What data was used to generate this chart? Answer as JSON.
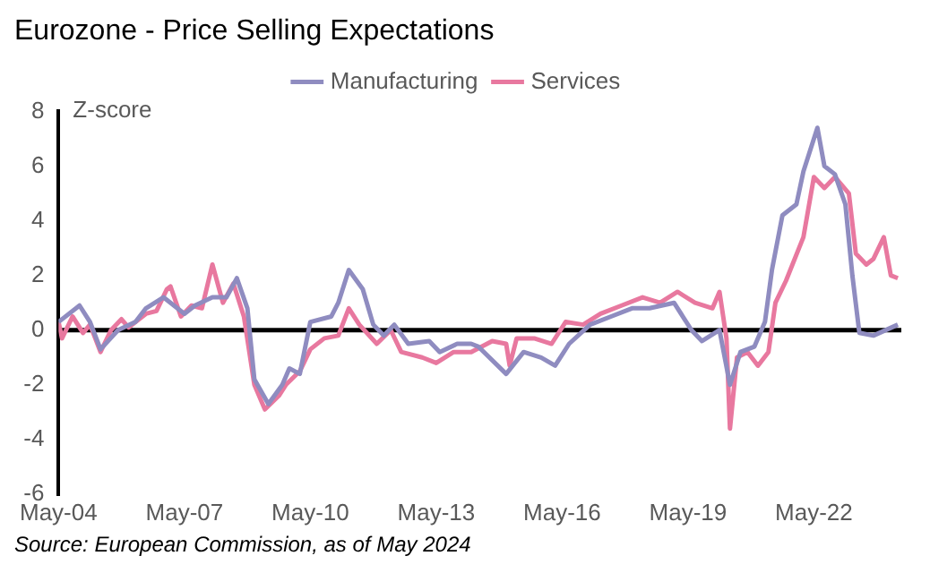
{
  "chart_data": {
    "type": "line",
    "title": "Eurozone - Price Selling Expectations",
    "ylabel": "Z-score",
    "annotations": [
      "Source: European Commission, as of May 2024"
    ],
    "xlim": [
      "2004-05",
      "2024-06"
    ],
    "xticks": [
      {
        "value": "2004-05",
        "label": "May-04"
      },
      {
        "value": "2007-05",
        "label": "May-07"
      },
      {
        "value": "2010-05",
        "label": "May-10"
      },
      {
        "value": "2013-05",
        "label": "May-13"
      },
      {
        "value": "2016-05",
        "label": "May-16"
      },
      {
        "value": "2019-05",
        "label": "May-19"
      },
      {
        "value": "2022-05",
        "label": "May-22"
      }
    ],
    "ref_lines": [
      {
        "axis": "y",
        "value": 0,
        "color": "#000000"
      }
    ],
    "ylim": [
      -6,
      8
    ],
    "yticks": [
      -6,
      -4,
      -2,
      0,
      2,
      4,
      6,
      8
    ],
    "grid": false,
    "legend": "top",
    "line_style": "solid",
    "marker": "none",
    "series": [
      {
        "name": "Manufacturing",
        "color": "#8f8cc0",
        "x": [
          "2004-05",
          "2004-11",
          "2005-02",
          "2005-05",
          "2005-10",
          "2006-03",
          "2006-06",
          "2006-11",
          "2007-05",
          "2007-08",
          "2008-01",
          "2008-05",
          "2008-08",
          "2008-11",
          "2009-01",
          "2009-05",
          "2009-09",
          "2009-11",
          "2010-02",
          "2010-05",
          "2010-11",
          "2011-01",
          "2011-04",
          "2011-08",
          "2011-11",
          "2012-02",
          "2012-05",
          "2012-09",
          "2013-03",
          "2013-06",
          "2013-11",
          "2014-03",
          "2014-05",
          "2015-01",
          "2015-06",
          "2015-11",
          "2016-03",
          "2016-07",
          "2017-01",
          "2017-07",
          "2018-01",
          "2018-06",
          "2019-01",
          "2019-06",
          "2019-09",
          "2020-02",
          "2020-05",
          "2020-08",
          "2020-12",
          "2021-03",
          "2021-05",
          "2021-08",
          "2021-12",
          "2022-02",
          "2022-06",
          "2022-08",
          "2022-11",
          "2023-02",
          "2023-04",
          "2023-06",
          "2023-10",
          "2024-05"
        ],
        "values": [
          0.3,
          0.9,
          0.3,
          -0.7,
          0,
          0.3,
          0.8,
          1.2,
          0.6,
          0.9,
          1.2,
          1.2,
          1.9,
          0.8,
          -1.8,
          -2.7,
          -2,
          -1.4,
          -1.6,
          0.3,
          0.5,
          1,
          2.2,
          1.5,
          0.2,
          -0.2,
          0.2,
          -0.5,
          -0.4,
          -0.8,
          -0.5,
          -0.5,
          -0.6,
          -1.6,
          -0.8,
          -1,
          -1.3,
          -0.5,
          0.2,
          0.5,
          0.8,
          0.8,
          1,
          0,
          -0.4,
          0,
          -2,
          -0.8,
          -0.6,
          0.3,
          2.2,
          4.2,
          4.6,
          5.8,
          7.4,
          6,
          5.7,
          4.6,
          2,
          -0.1,
          -0.2,
          0.2
        ]
      },
      {
        "name": "Services",
        "color": "#e8789f",
        "x": [
          "2004-05",
          "2004-06",
          "2004-09",
          "2004-12",
          "2005-02",
          "2005-05",
          "2005-08",
          "2005-11",
          "2006-01",
          "2006-06",
          "2006-09",
          "2006-12",
          "2007-01",
          "2007-04",
          "2007-07",
          "2007-10",
          "2008-01",
          "2008-04",
          "2008-07",
          "2008-10",
          "2009-01",
          "2009-04",
          "2009-08",
          "2009-10",
          "2010-02",
          "2010-05",
          "2010-09",
          "2011-01",
          "2011-04",
          "2011-07",
          "2011-12",
          "2012-04",
          "2012-07",
          "2013-01",
          "2013-05",
          "2013-10",
          "2014-02",
          "2014-03",
          "2014-09",
          "2015-01",
          "2015-02",
          "2015-04",
          "2015-09",
          "2016-02",
          "2016-06",
          "2016-11",
          "2017-04",
          "2017-10",
          "2018-04",
          "2018-09",
          "2019-02",
          "2019-07",
          "2019-12",
          "2020-02",
          "2020-04",
          "2020-05",
          "2020-07",
          "2020-10",
          "2021-01",
          "2021-04",
          "2021-06",
          "2021-09",
          "2022-02",
          "2022-05",
          "2022-08",
          "2022-11",
          "2023-03",
          "2023-05",
          "2023-08",
          "2023-10",
          "2024-01",
          "2024-03",
          "2024-05"
        ],
        "values": [
          0.3,
          -0.3,
          0.5,
          -0.1,
          0.2,
          -0.8,
          0,
          0.4,
          0.1,
          0.6,
          0.7,
          1.5,
          1.6,
          0.5,
          0.9,
          0.8,
          2.4,
          1,
          1.7,
          0.5,
          -2,
          -2.9,
          -2.4,
          -2,
          -1.5,
          -0.7,
          -0.3,
          -0.2,
          0.8,
          0.2,
          -0.5,
          0,
          -0.8,
          -1,
          -1.2,
          -0.8,
          -0.8,
          -0.8,
          -0.4,
          -0.5,
          -1.3,
          -0.3,
          -0.3,
          -0.5,
          0.3,
          0.2,
          0.6,
          0.9,
          1.2,
          1,
          1.4,
          1,
          0.8,
          1.4,
          -0.3,
          -3.6,
          -1,
          -0.8,
          -1.3,
          -0.8,
          1,
          1.8,
          3.4,
          5.6,
          5.2,
          5.6,
          5,
          2.8,
          2.4,
          2.6,
          3.4,
          2,
          1.9
        ]
      }
    ]
  }
}
